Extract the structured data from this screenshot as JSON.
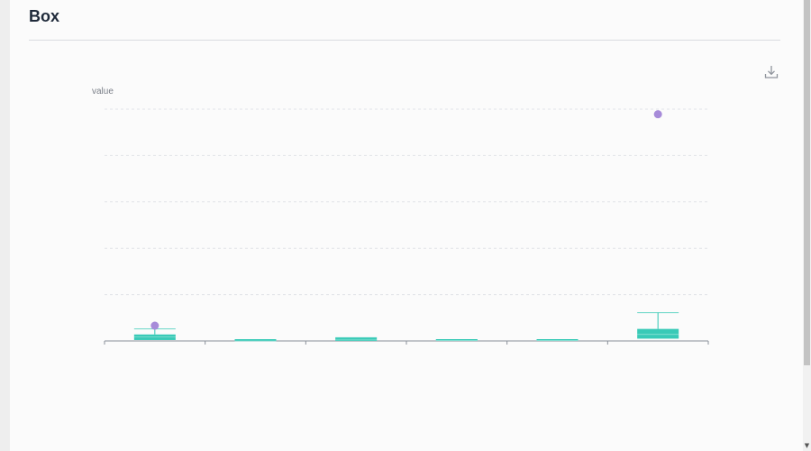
{
  "card": {
    "title": "Box"
  },
  "toolbar": {
    "download_icon": "download-icon"
  },
  "colors": {
    "box_fill": "#2ec7b3",
    "whisker": "#2ec7b3",
    "outlier": "#a78bd9",
    "grid": "#e1e3e8",
    "axis": "#8a8f99",
    "label": "#7a7f88"
  },
  "chart_data": {
    "type": "box",
    "ylabel": "value",
    "xlabel": "",
    "title": "",
    "ylim": [
      0,
      5
    ],
    "grid": true,
    "categories": [
      "",
      "",
      "",
      "",
      "",
      ""
    ],
    "boxes": [
      {
        "min": 0,
        "q1": 0.02,
        "median": 0.09,
        "q3": 0.14,
        "max": 0.26,
        "outliers": [
          0.33
        ]
      },
      {
        "min": 0,
        "q1": 0,
        "median": 0,
        "q3": 0,
        "max": 0,
        "outliers": []
      },
      {
        "min": 0,
        "q1": 0,
        "median": 0.02,
        "q3": 0.07,
        "max": 0.07,
        "outliers": []
      },
      {
        "min": 0,
        "q1": 0,
        "median": 0.01,
        "q3": 0.03,
        "max": 0.03,
        "outliers": []
      },
      {
        "min": 0,
        "q1": 0,
        "median": 0.01,
        "q3": 0.03,
        "max": 0.03,
        "outliers": []
      },
      {
        "min": 0,
        "q1": 0.05,
        "median": 0.14,
        "q3": 0.26,
        "max": 0.61,
        "outliers": [
          4.89
        ]
      }
    ]
  }
}
